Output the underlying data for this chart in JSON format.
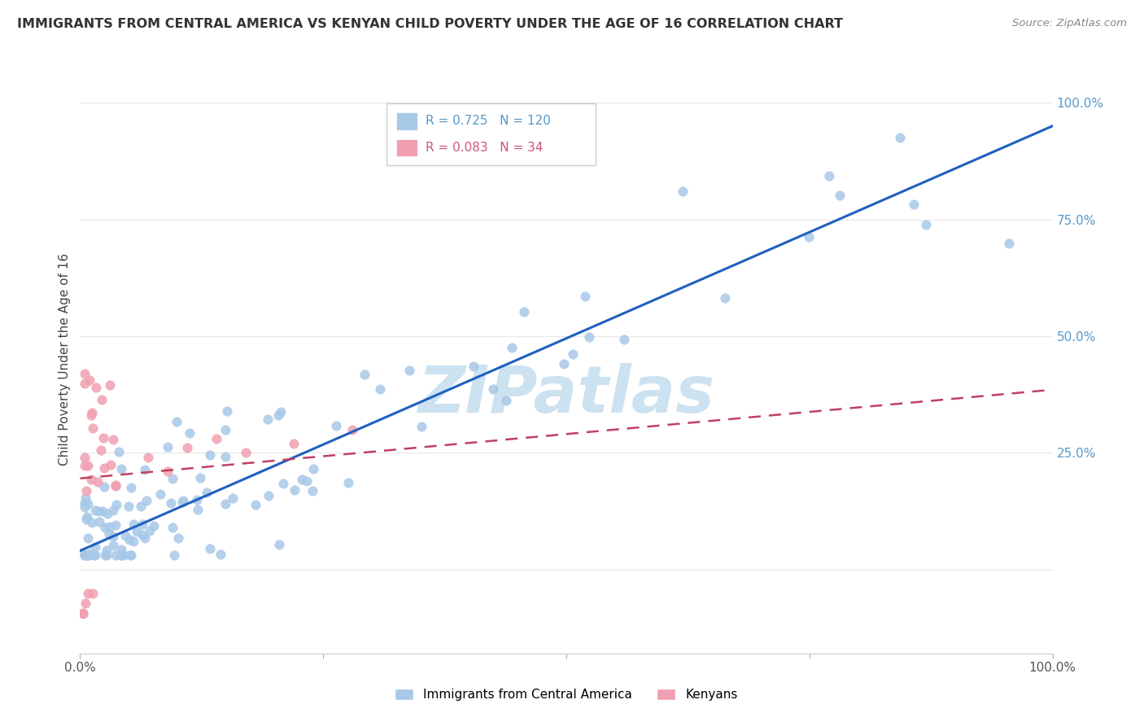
{
  "title": "IMMIGRANTS FROM CENTRAL AMERICA VS KENYAN CHILD POVERTY UNDER THE AGE OF 16 CORRELATION CHART",
  "source": "Source: ZipAtlas.com",
  "ylabel": "Child Poverty Under the Age of 16",
  "legend_blue": "Immigrants from Central America",
  "legend_pink": "Kenyans",
  "r_blue": 0.725,
  "n_blue": 120,
  "r_pink": 0.083,
  "n_pink": 34,
  "blue_scatter_color": "#a8c8e8",
  "pink_scatter_color": "#f0a0b0",
  "blue_line_color": "#2060c0",
  "pink_line_color": "#c04060",
  "watermark_color": "#c8dff0",
  "background_color": "#ffffff",
  "grid_color": "#e8e8e8",
  "xlim": [
    0.0,
    1.0
  ],
  "ylim": [
    -0.18,
    1.08
  ],
  "right_tick_color": "#5599cc",
  "ytick_positions": [
    0.0,
    0.25,
    0.5,
    0.75,
    1.0
  ],
  "ytick_labels": [
    "",
    "25.0%",
    "50.0%",
    "75.0%",
    "100.0%"
  ]
}
